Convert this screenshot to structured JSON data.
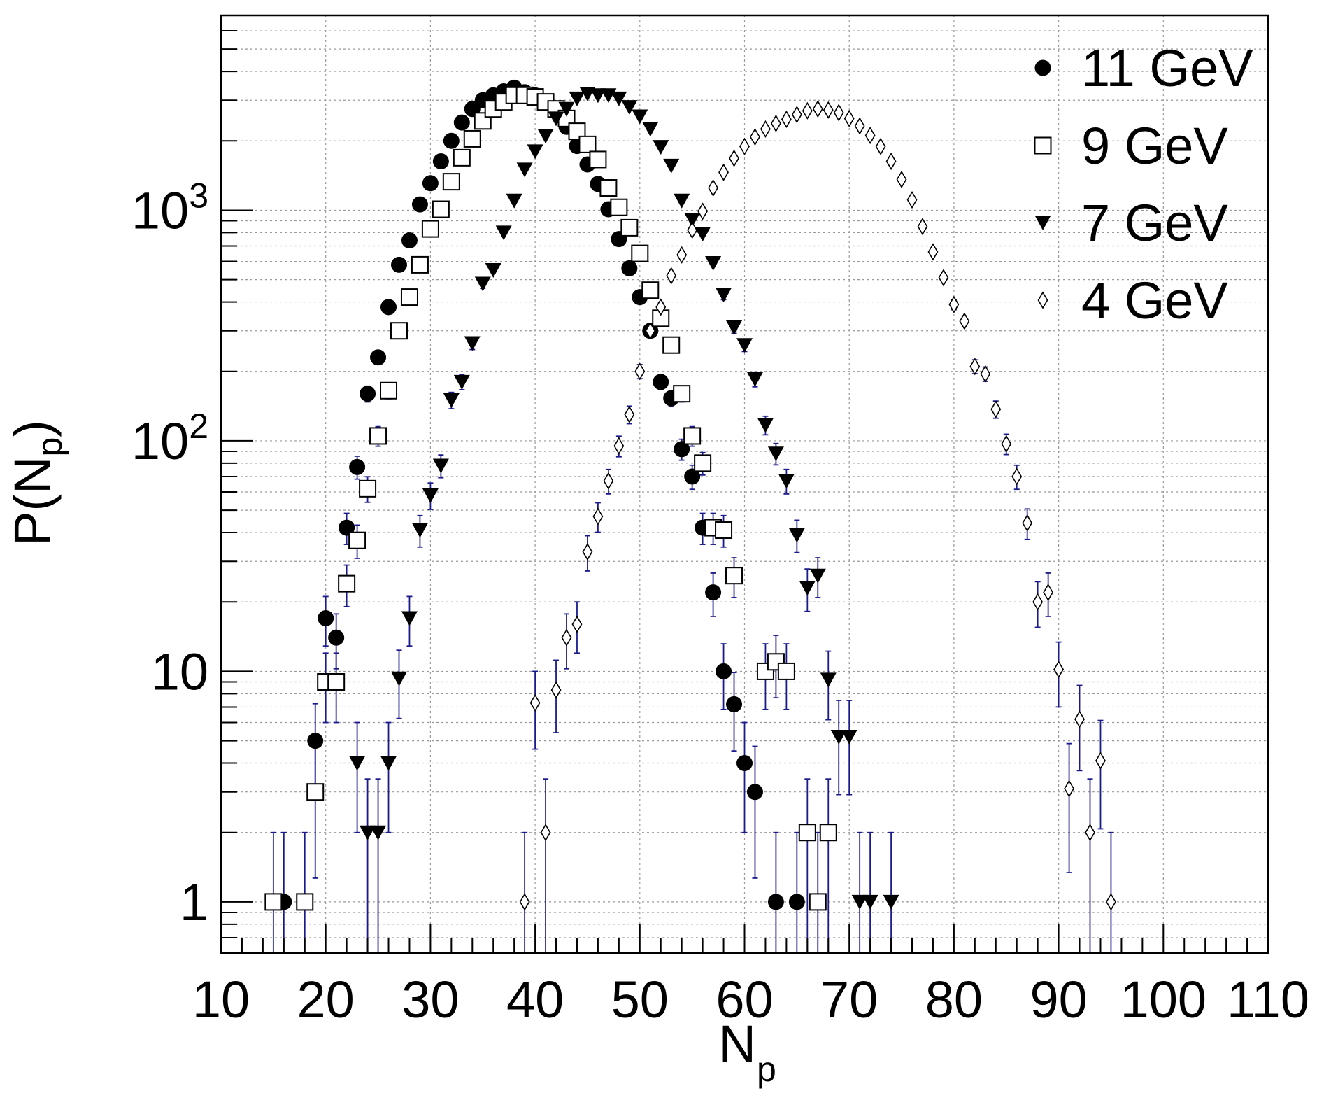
{
  "chart_data": {
    "type": "scatter",
    "title": "",
    "xlabel": "N",
    "xlabel_sub": "p",
    "ylabel": "P(N",
    "ylabel_sub": "p",
    "ylabel_close": ")",
    "xlim": [
      10,
      110
    ],
    "ylim": [
      0.6,
      7000
    ],
    "yscale": "log",
    "grid": true,
    "legend_position": "top-right",
    "x_ticks": [
      {
        "value": 10,
        "label": "10"
      },
      {
        "value": 20,
        "label": "20"
      },
      {
        "value": 30,
        "label": "30"
      },
      {
        "value": 40,
        "label": "40"
      },
      {
        "value": 50,
        "label": "50"
      },
      {
        "value": 60,
        "label": "60"
      },
      {
        "value": 70,
        "label": "70"
      },
      {
        "value": 80,
        "label": "80"
      },
      {
        "value": 90,
        "label": "90"
      },
      {
        "value": 100,
        "label": "100"
      },
      {
        "value": 110,
        "label": "110"
      }
    ],
    "y_ticks": [
      {
        "value": 1,
        "base": "1",
        "exp": ""
      },
      {
        "value": 10,
        "base": "10",
        "exp": ""
      },
      {
        "value": 100,
        "base": "10",
        "exp": "2"
      },
      {
        "value": 1000,
        "base": "10",
        "exp": "3"
      }
    ],
    "error_bar_color": "#1a1a8c",
    "series": [
      {
        "name": "11 GeV",
        "marker": "filled-circle",
        "points": [
          [
            16,
            1
          ],
          [
            19,
            5
          ],
          [
            20,
            17
          ],
          [
            21,
            14
          ],
          [
            22,
            42
          ],
          [
            23,
            77
          ],
          [
            24,
            160
          ],
          [
            25,
            230
          ],
          [
            26,
            380
          ],
          [
            27,
            580
          ],
          [
            28,
            740
          ],
          [
            29,
            1060
          ],
          [
            30,
            1310
          ],
          [
            31,
            1630
          ],
          [
            32,
            2000
          ],
          [
            33,
            2400
          ],
          [
            34,
            2750
          ],
          [
            35,
            3000
          ],
          [
            36,
            3150
          ],
          [
            37,
            3280
          ],
          [
            38,
            3400
          ],
          [
            39,
            3250
          ],
          [
            40,
            3150
          ],
          [
            41,
            2950
          ],
          [
            42,
            2700
          ],
          [
            43,
            2300
          ],
          [
            44,
            1900
          ],
          [
            45,
            1580
          ],
          [
            46,
            1300
          ],
          [
            47,
            1010
          ],
          [
            48,
            750
          ],
          [
            49,
            560
          ],
          [
            50,
            420
          ],
          [
            51,
            300
          ],
          [
            52,
            180
          ],
          [
            53,
            153
          ],
          [
            54,
            92
          ],
          [
            55,
            70
          ],
          [
            56,
            42
          ],
          [
            57,
            22
          ],
          [
            58,
            10
          ],
          [
            59,
            7.2
          ],
          [
            60,
            4
          ],
          [
            61,
            3
          ],
          [
            63,
            1
          ],
          [
            65,
            1
          ]
        ]
      },
      {
        "name": "9 GeV",
        "marker": "open-square",
        "points": [
          [
            15,
            1
          ],
          [
            18,
            1
          ],
          [
            19,
            3
          ],
          [
            20,
            9
          ],
          [
            21,
            9
          ],
          [
            22,
            24
          ],
          [
            23,
            37
          ],
          [
            24,
            62
          ],
          [
            25,
            105
          ],
          [
            26,
            165
          ],
          [
            27,
            300
          ],
          [
            28,
            420
          ],
          [
            29,
            580
          ],
          [
            30,
            830
          ],
          [
            31,
            1010
          ],
          [
            32,
            1330
          ],
          [
            33,
            1690
          ],
          [
            34,
            2040
          ],
          [
            35,
            2440
          ],
          [
            36,
            2750
          ],
          [
            37,
            2950
          ],
          [
            38,
            3150
          ],
          [
            39,
            3150
          ],
          [
            40,
            3100
          ],
          [
            41,
            2950
          ],
          [
            42,
            2750
          ],
          [
            43,
            2500
          ],
          [
            44,
            2200
          ],
          [
            45,
            1930
          ],
          [
            46,
            1660
          ],
          [
            47,
            1250
          ],
          [
            48,
            1030
          ],
          [
            49,
            840
          ],
          [
            50,
            650
          ],
          [
            51,
            450
          ],
          [
            52,
            340
          ],
          [
            53,
            260
          ],
          [
            54,
            160
          ],
          [
            55,
            105
          ],
          [
            56,
            80
          ],
          [
            57,
            42
          ],
          [
            58,
            41
          ],
          [
            59,
            26
          ],
          [
            62,
            10
          ],
          [
            63,
            11
          ],
          [
            64,
            10
          ],
          [
            66,
            2
          ],
          [
            67,
            1
          ],
          [
            68,
            2
          ]
        ]
      },
      {
        "name": "7 GeV",
        "marker": "filled-triangle-down",
        "points": [
          [
            23,
            4
          ],
          [
            24,
            2
          ],
          [
            25,
            2
          ],
          [
            26,
            4
          ],
          [
            27,
            9.3
          ],
          [
            28,
            17
          ],
          [
            29,
            41
          ],
          [
            30,
            58
          ],
          [
            31,
            78
          ],
          [
            32,
            150
          ],
          [
            33,
            180
          ],
          [
            34,
            265
          ],
          [
            35,
            480
          ],
          [
            36,
            550
          ],
          [
            37,
            800
          ],
          [
            38,
            1100
          ],
          [
            39,
            1500
          ],
          [
            40,
            1800
          ],
          [
            41,
            2100
          ],
          [
            42,
            2500
          ],
          [
            43,
            2750
          ],
          [
            44,
            3050
          ],
          [
            45,
            3200
          ],
          [
            46,
            3150
          ],
          [
            47,
            3150
          ],
          [
            48,
            3050
          ],
          [
            49,
            2800
          ],
          [
            50,
            2550
          ],
          [
            51,
            2250
          ],
          [
            52,
            1880
          ],
          [
            53,
            1560
          ],
          [
            54,
            1100
          ],
          [
            55,
            910
          ],
          [
            56,
            790
          ],
          [
            57,
            590
          ],
          [
            58,
            430
          ],
          [
            59,
            310
          ],
          [
            60,
            260
          ],
          [
            61,
            185
          ],
          [
            62,
            117
          ],
          [
            63,
            88
          ],
          [
            64,
            67
          ],
          [
            65,
            39
          ],
          [
            66,
            23
          ],
          [
            67,
            26
          ],
          [
            68,
            9.2
          ],
          [
            69,
            5.2
          ],
          [
            70,
            5.2
          ],
          [
            71,
            1
          ],
          [
            72,
            1
          ],
          [
            74,
            1
          ]
        ]
      },
      {
        "name": "4 GeV",
        "marker": "open-diamond",
        "points": [
          [
            39,
            1
          ],
          [
            40,
            7.3
          ],
          [
            41,
            2
          ],
          [
            42,
            8.3
          ],
          [
            43,
            14
          ],
          [
            44,
            16
          ],
          [
            45,
            33
          ],
          [
            46,
            47
          ],
          [
            47,
            67
          ],
          [
            48,
            95
          ],
          [
            49,
            130
          ],
          [
            50,
            200
          ],
          [
            51,
            300
          ],
          [
            52,
            380
          ],
          [
            53,
            520
          ],
          [
            54,
            640
          ],
          [
            55,
            820
          ],
          [
            56,
            990
          ],
          [
            57,
            1250
          ],
          [
            58,
            1460
          ],
          [
            59,
            1680
          ],
          [
            60,
            1890
          ],
          [
            61,
            2080
          ],
          [
            62,
            2250
          ],
          [
            63,
            2380
          ],
          [
            64,
            2480
          ],
          [
            65,
            2600
          ],
          [
            66,
            2700
          ],
          [
            67,
            2750
          ],
          [
            68,
            2720
          ],
          [
            69,
            2650
          ],
          [
            70,
            2500
          ],
          [
            71,
            2320
          ],
          [
            72,
            2110
          ],
          [
            73,
            1890
          ],
          [
            74,
            1630
          ],
          [
            75,
            1360
          ],
          [
            76,
            1110
          ],
          [
            77,
            850
          ],
          [
            78,
            660
          ],
          [
            79,
            510
          ],
          [
            80,
            390
          ],
          [
            81,
            330
          ],
          [
            82,
            210
          ],
          [
            83,
            195
          ],
          [
            84,
            137
          ],
          [
            85,
            97
          ],
          [
            86,
            70
          ],
          [
            87,
            44
          ],
          [
            88,
            20
          ],
          [
            89,
            22
          ],
          [
            90,
            10.2
          ],
          [
            91,
            3.1
          ],
          [
            92,
            6.2
          ],
          [
            93,
            2
          ],
          [
            94,
            4.1
          ],
          [
            95,
            1
          ]
        ]
      }
    ]
  }
}
